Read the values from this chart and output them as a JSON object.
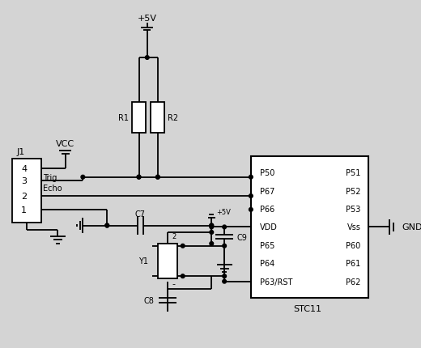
{
  "bg_color": "#d4d4d4",
  "line_color": "#000000",
  "figsize": [
    5.2,
    4.31
  ],
  "dpi": 100,
  "ic_left_pins": [
    "P50",
    "P67",
    "P66",
    "VDD",
    "P65",
    "P64",
    "P63/RST"
  ],
  "ic_right_pins": [
    "P51",
    "P52",
    "P53",
    "Vss",
    "P60",
    "P61",
    "P62"
  ],
  "ic_label": "STC11"
}
